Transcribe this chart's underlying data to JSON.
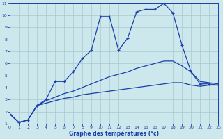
{
  "title": "",
  "xlabel": "Graphe des températures (°c)",
  "bg_color": "#cce8ec",
  "line_color": "#1a3faa",
  "grid_color": "#a8c8d0",
  "xlim": [
    0,
    23
  ],
  "ylim": [
    1,
    11
  ],
  "xticks": [
    0,
    1,
    2,
    3,
    4,
    5,
    6,
    7,
    8,
    9,
    10,
    11,
    12,
    13,
    14,
    15,
    16,
    17,
    18,
    19,
    20,
    21,
    22,
    23
  ],
  "yticks": [
    1,
    2,
    3,
    4,
    5,
    6,
    7,
    8,
    9,
    10,
    11
  ],
  "line1_x": [
    0,
    1,
    2,
    3,
    4,
    5,
    6,
    7,
    8,
    9,
    10,
    11,
    12,
    13,
    14,
    15,
    16,
    17,
    18,
    19,
    20,
    21,
    22,
    23
  ],
  "line1_y": [
    1.8,
    1.1,
    1.3,
    2.5,
    3.0,
    4.5,
    4.5,
    5.3,
    6.4,
    7.1,
    9.9,
    9.9,
    7.1,
    8.1,
    10.3,
    10.5,
    10.5,
    11.0,
    10.2,
    7.5,
    5.3,
    4.3,
    4.3,
    4.2
  ],
  "line2_x": [
    0,
    1,
    2,
    3,
    4,
    5,
    6,
    7,
    8,
    9,
    10,
    11,
    12,
    13,
    14,
    15,
    16,
    17,
    18,
    19,
    20,
    21,
    22,
    23
  ],
  "line2_y": [
    1.8,
    1.1,
    1.3,
    2.5,
    2.7,
    2.9,
    3.1,
    3.2,
    3.4,
    3.5,
    3.6,
    3.7,
    3.8,
    3.9,
    4.0,
    4.1,
    4.2,
    4.3,
    4.4,
    4.4,
    4.2,
    4.1,
    4.2,
    4.2
  ],
  "line3_x": [
    0,
    1,
    2,
    3,
    4,
    5,
    6,
    7,
    8,
    9,
    10,
    11,
    12,
    13,
    14,
    15,
    16,
    17,
    18,
    19,
    20,
    21,
    22,
    23
  ],
  "line3_y": [
    1.8,
    1.1,
    1.3,
    2.5,
    2.9,
    3.2,
    3.5,
    3.7,
    4.0,
    4.3,
    4.6,
    4.9,
    5.1,
    5.3,
    5.6,
    5.8,
    6.0,
    6.2,
    6.2,
    5.8,
    5.3,
    4.5,
    4.4,
    4.3
  ]
}
